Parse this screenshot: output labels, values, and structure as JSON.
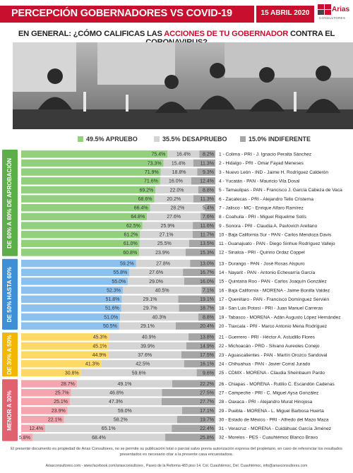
{
  "header": {
    "title": "PERCEPCIÓN GOBERNADORES VS COVID-19",
    "date": "15 ABRIL 2020",
    "logo_word": "Arias",
    "logo_sub": "CONSULTORES"
  },
  "question": {
    "prefix": "EN GENERAL: ¿CÓMO CALIFICAS LAS ",
    "highlight": "ACCIONES DE TU GOBERNADOR",
    "suffix": " CONTRA EL CORONAVIRUS?"
  },
  "legend": {
    "approve": "49.5% APRUEBO",
    "disapprove": "35.5% DESAPRUEBO",
    "indifferent": "15.0% INDIFERENTE"
  },
  "colors": {
    "brand_red": "#c8102e",
    "green": "#92d07e",
    "blue": "#8cc0ee",
    "yellow": "#ffd966",
    "pink": "#f4a6ae",
    "disapprove": "#d4d4d4",
    "indifferent": "#a6a6a6"
  },
  "chart_data": {
    "type": "bar",
    "orientation": "horizontal-stacked-100",
    "series_names": [
      "APRUEBO",
      "DESAPRUEBO",
      "INDIFERENTE"
    ],
    "groups": [
      {
        "label": "DE 60% A 80% DE APROBACIÓN",
        "color": "#92d07e",
        "band": "#5cae48"
      },
      {
        "label": "DE 50% HASTA 60%",
        "color": "#8cc0ee",
        "band": "#3f8fd6"
      },
      {
        "label": "DE 30% A 50%",
        "color": "#ffd966",
        "band": "#f2b705"
      },
      {
        "label": "MENOR A 30%",
        "color": "#f4a6ae",
        "band": "#e0626f"
      }
    ],
    "rows": [
      {
        "group": 0,
        "label": "1 - Colima - PRI - J. Ignacio Peralta Sánchez",
        "values": [
          75.4,
          16.4,
          8.2
        ]
      },
      {
        "group": 0,
        "label": "2 - Hidalgo - PRI - Omar Fayad Meneses",
        "values": [
          73.3,
          15.4,
          11.3
        ]
      },
      {
        "group": 0,
        "label": "3 - Nuevo León - IND - Jaime H. Rodríguez Calderón",
        "values": [
          71.9,
          18.8,
          9.3
        ]
      },
      {
        "group": 0,
        "label": "4 - Yucatán - PAN - Mauricio Vila Dosal",
        "values": [
          71.6,
          16.0,
          12.4
        ]
      },
      {
        "group": 0,
        "label": "5 - Tamaulipas - PAN - Francisco J. García Cabeza de Vaca",
        "values": [
          69.2,
          22.0,
          8.8
        ]
      },
      {
        "group": 0,
        "label": "6 - Zacatecas - PRI - Alejandro Tello Cristerna",
        "values": [
          68.6,
          20.2,
          11.3
        ]
      },
      {
        "group": 0,
        "label": "7 - Jalisco - MC - Enrique Alfaro Ramírez",
        "values": [
          66.4,
          28.2,
          5.4
        ]
      },
      {
        "group": 0,
        "label": "8 - Coahuila - PRI - Miguel Riquelme Solís",
        "values": [
          64.8,
          27.6,
          7.6
        ]
      },
      {
        "group": 0,
        "label": "9 - Sonora - PRI - Claudia A. Pavlovich Arellano",
        "values": [
          62.5,
          25.9,
          11.6
        ]
      },
      {
        "group": 0,
        "label": "10 - Baja California Sur - PAN - Carlos Mendoza Davis",
        "values": [
          61.2,
          27.1,
          11.7
        ]
      },
      {
        "group": 0,
        "label": "11 - Guanajuato - PAN - Diego Sinhue Rodríguez Vallejo",
        "values": [
          61.0,
          25.5,
          13.5
        ]
      },
      {
        "group": 0,
        "label": "12 - Sinaloa - PRI - Quirino Ordaz Coppel",
        "values": [
          60.8,
          23.9,
          15.3
        ]
      },
      {
        "group": 1,
        "label": "13 - Durango - PAN - José Rosas Aispuro",
        "values": [
          59.2,
          27.8,
          13.0
        ]
      },
      {
        "group": 1,
        "label": "14 - Nayarit - PAN - Antonio Echevarría García",
        "values": [
          55.8,
          27.6,
          16.7
        ]
      },
      {
        "group": 1,
        "label": "15 - Quintana Roo - PAN - Carlos Joaquín González",
        "values": [
          55.0,
          29.0,
          16.0
        ]
      },
      {
        "group": 1,
        "label": "16 - Baja California - MORENA - Jaime Bonilla Valdez",
        "values": [
          52.3,
          40.5,
          7.1
        ]
      },
      {
        "group": 1,
        "label": "17 - Querétaro - PAN - Francisco Domínguez Servién",
        "values": [
          51.8,
          29.1,
          19.1
        ]
      },
      {
        "group": 1,
        "label": "18 - San Luis Potosí - PRI - Juan Manuel Carreras",
        "values": [
          51.6,
          29.7,
          18.7
        ]
      },
      {
        "group": 1,
        "label": "19 - Tabasco - MORENA - Adán Augusto López Hernández",
        "values": [
          51.0,
          40.3,
          8.8
        ]
      },
      {
        "group": 1,
        "label": "20 - Tlaxcala - PRI - Marco Antonio Mena Rodríguez",
        "values": [
          50.5,
          29.1,
          20.4
        ]
      },
      {
        "group": 2,
        "label": "21 - Guerrero - PRI - Héctor A. Astudillo Flores",
        "values": [
          45.3,
          40.9,
          13.8
        ]
      },
      {
        "group": 2,
        "label": "22 - Michoacán - PRD - Silvano Aureoles Conejo",
        "values": [
          45.1,
          39.9,
          14.9
        ]
      },
      {
        "group": 2,
        "label": "23 - Aguascalientes - PAN - Martín Orozco Sandoval",
        "values": [
          44.9,
          37.6,
          17.5
        ]
      },
      {
        "group": 2,
        "label": "24 - Chihuahua - PAN - Javier Corral Jurado",
        "values": [
          41.3,
          42.5,
          16.1
        ]
      },
      {
        "group": 2,
        "label": "25 - CDMX - MORENA - Claudia Sheinbaum Pardo",
        "values": [
          30.8,
          59.6,
          9.6
        ]
      },
      {
        "group": 3,
        "label": "26 - Chiapas - MORENA - Rutilio C. Escandón Cadenas",
        "values": [
          28.7,
          49.1,
          22.2
        ]
      },
      {
        "group": 3,
        "label": "27 - Campeche - PRI - C. Miguel Aysa González",
        "values": [
          25.7,
          46.8,
          27.5
        ]
      },
      {
        "group": 3,
        "label": "28 - Oaxaca - PRI - Alejandro Murat Hinojosa",
        "values": [
          25.1,
          47.3,
          27.7
        ]
      },
      {
        "group": 3,
        "label": "29 - Puebla - MORENA - L. Miguel Barbosa Huerta",
        "values": [
          23.9,
          59.0,
          17.1
        ]
      },
      {
        "group": 3,
        "label": "30 - Estado de México - PRI - Alfredo del Mazo Maza",
        "values": [
          22.1,
          58.2,
          19.7
        ]
      },
      {
        "group": 3,
        "label": "31 - Veracruz - MORENA - Cuidáhuac García Jiménez",
        "values": [
          12.4,
          65.1,
          22.4
        ]
      },
      {
        "group": 3,
        "label": "32 - Morelos - PES - Cuauhtémoc Blanco Bravo",
        "values": [
          5.8,
          68.4,
          25.8
        ]
      }
    ]
  },
  "footer": {
    "note": "El presente documento es propiedad de Arias Consultores, no se permite su publicación total o parcial salvo previa autorización expresa del propietario, en caso de referenciar los resultados presentados es necesario citar a la presente casa encuestadora.",
    "contact": "Ariasconsultores.com - www.facebook.com/ariasconsultores , Paseo de la Reforma 483 piso 14. Col. Cuauhtémoc, Del. Cuauhtémoc, info@ariasconsultores.com"
  }
}
